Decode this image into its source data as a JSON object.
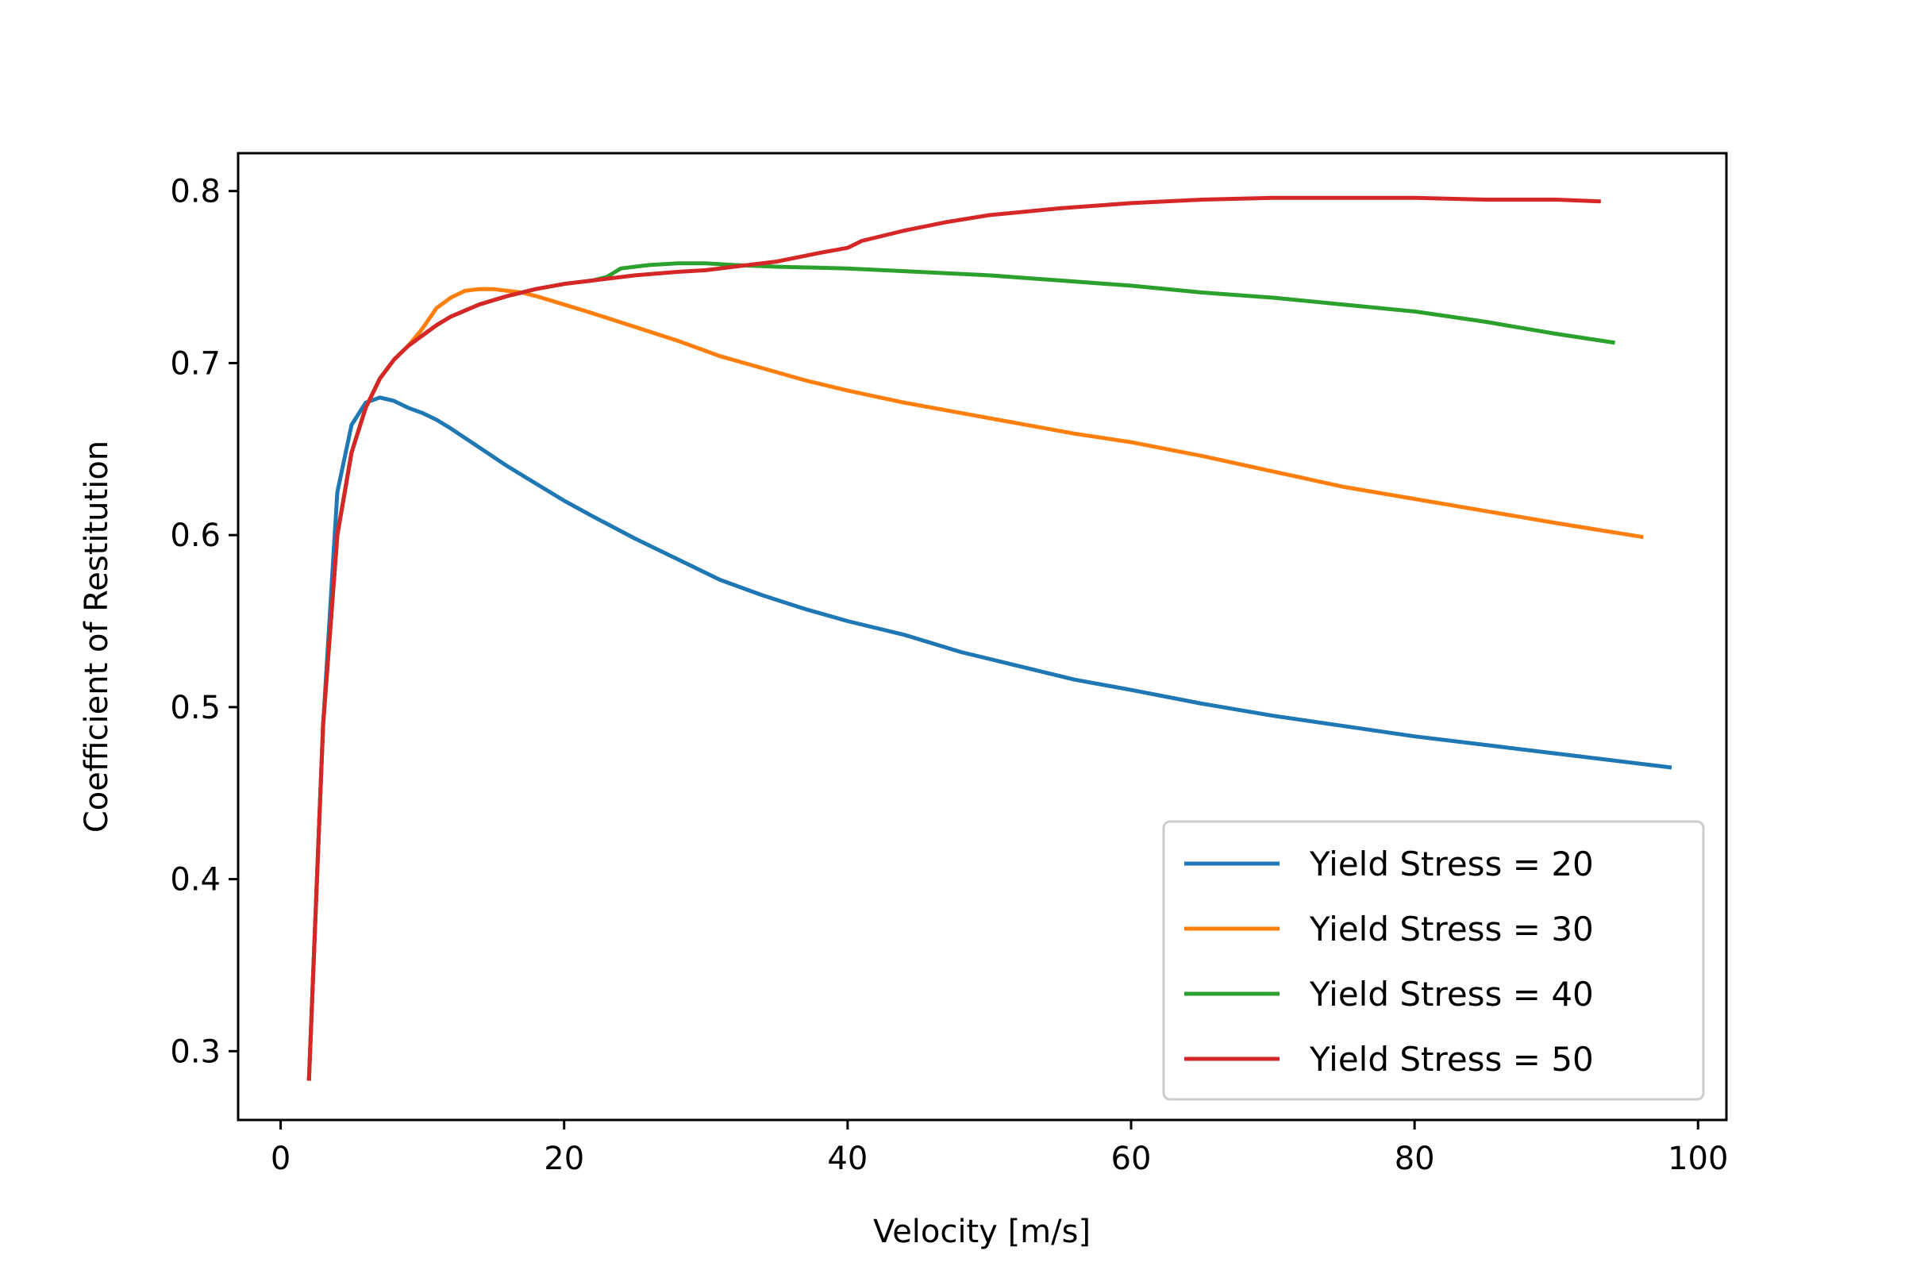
{
  "chart_data": {
    "type": "line",
    "title": "",
    "xlabel": "Velocity [m/s]",
    "ylabel": "Coefficient of Restitution",
    "xlim": [
      -3,
      102
    ],
    "ylim": [
      0.26,
      0.822
    ],
    "xticks": [
      0,
      20,
      40,
      60,
      80,
      100
    ],
    "yticks": [
      0.3,
      0.4,
      0.5,
      0.6,
      0.7,
      0.8
    ],
    "xtick_labels": [
      "0",
      "20",
      "40",
      "60",
      "80",
      "100"
    ],
    "ytick_labels": [
      "0.3",
      "0.4",
      "0.5",
      "0.6",
      "0.7",
      "0.8"
    ],
    "grid": false,
    "legend_position": "lower-right",
    "series": [
      {
        "name": "Yield Stress = 20",
        "color": "#1f77b4",
        "x": [
          2,
          3,
          4,
          5,
          6,
          7,
          8,
          9,
          10,
          11,
          12,
          14,
          16,
          18,
          20,
          22,
          25,
          28,
          31,
          34,
          37,
          40,
          44,
          48,
          52,
          56,
          60,
          65,
          70,
          75,
          80,
          85,
          90,
          95,
          98
        ],
        "y": [
          0.284,
          0.49,
          0.625,
          0.664,
          0.677,
          0.68,
          0.678,
          0.674,
          0.671,
          0.667,
          0.662,
          0.651,
          0.64,
          0.63,
          0.62,
          0.611,
          0.598,
          0.586,
          0.574,
          0.565,
          0.557,
          0.55,
          0.542,
          0.532,
          0.524,
          0.516,
          0.51,
          0.502,
          0.495,
          0.489,
          0.483,
          0.478,
          0.473,
          0.468,
          0.465
        ]
      },
      {
        "name": "Yield Stress = 30",
        "color": "#ff7f0e",
        "x": [
          2,
          3,
          4,
          5,
          6,
          7,
          8,
          9,
          10,
          11,
          12,
          13,
          14,
          15,
          16,
          17,
          18,
          20,
          22,
          25,
          28,
          31,
          34,
          37,
          40,
          44,
          48,
          52,
          56,
          60,
          65,
          70,
          75,
          80,
          85,
          90,
          96
        ],
        "y": [
          0.284,
          0.49,
          0.6,
          0.648,
          0.674,
          0.691,
          0.702,
          0.71,
          0.72,
          0.732,
          0.738,
          0.742,
          0.743,
          0.743,
          0.742,
          0.741,
          0.739,
          0.734,
          0.729,
          0.721,
          0.713,
          0.704,
          0.697,
          0.69,
          0.684,
          0.677,
          0.671,
          0.665,
          0.659,
          0.654,
          0.646,
          0.637,
          0.628,
          0.621,
          0.614,
          0.607,
          0.599
        ]
      },
      {
        "name": "Yield Stress = 40",
        "color": "#2ca02c",
        "x": [
          2,
          3,
          4,
          5,
          6,
          7,
          8,
          9,
          10,
          11,
          12,
          14,
          16,
          18,
          20,
          22,
          23,
          24,
          26,
          28,
          30,
          32,
          35,
          40,
          45,
          50,
          55,
          60,
          65,
          70,
          75,
          80,
          85,
          90,
          94
        ],
        "y": [
          0.284,
          0.49,
          0.6,
          0.648,
          0.674,
          0.691,
          0.702,
          0.71,
          0.716,
          0.722,
          0.727,
          0.734,
          0.739,
          0.743,
          0.746,
          0.748,
          0.75,
          0.755,
          0.757,
          0.758,
          0.758,
          0.757,
          0.756,
          0.755,
          0.753,
          0.751,
          0.748,
          0.745,
          0.741,
          0.738,
          0.734,
          0.73,
          0.724,
          0.717,
          0.712
        ]
      },
      {
        "name": "Yield Stress = 50",
        "color": "#d62728",
        "x": [
          2,
          3,
          4,
          5,
          6,
          7,
          8,
          9,
          10,
          11,
          12,
          14,
          16,
          18,
          20,
          22,
          25,
          28,
          30,
          32,
          35,
          38,
          40,
          41,
          44,
          47,
          50,
          55,
          60,
          65,
          70,
          75,
          80,
          85,
          90,
          93
        ],
        "y": [
          0.284,
          0.49,
          0.6,
          0.648,
          0.674,
          0.691,
          0.702,
          0.71,
          0.716,
          0.722,
          0.727,
          0.734,
          0.739,
          0.743,
          0.746,
          0.748,
          0.751,
          0.753,
          0.754,
          0.756,
          0.759,
          0.764,
          0.767,
          0.771,
          0.777,
          0.782,
          0.786,
          0.79,
          0.793,
          0.795,
          0.796,
          0.796,
          0.796,
          0.795,
          0.795,
          0.794
        ]
      }
    ]
  }
}
